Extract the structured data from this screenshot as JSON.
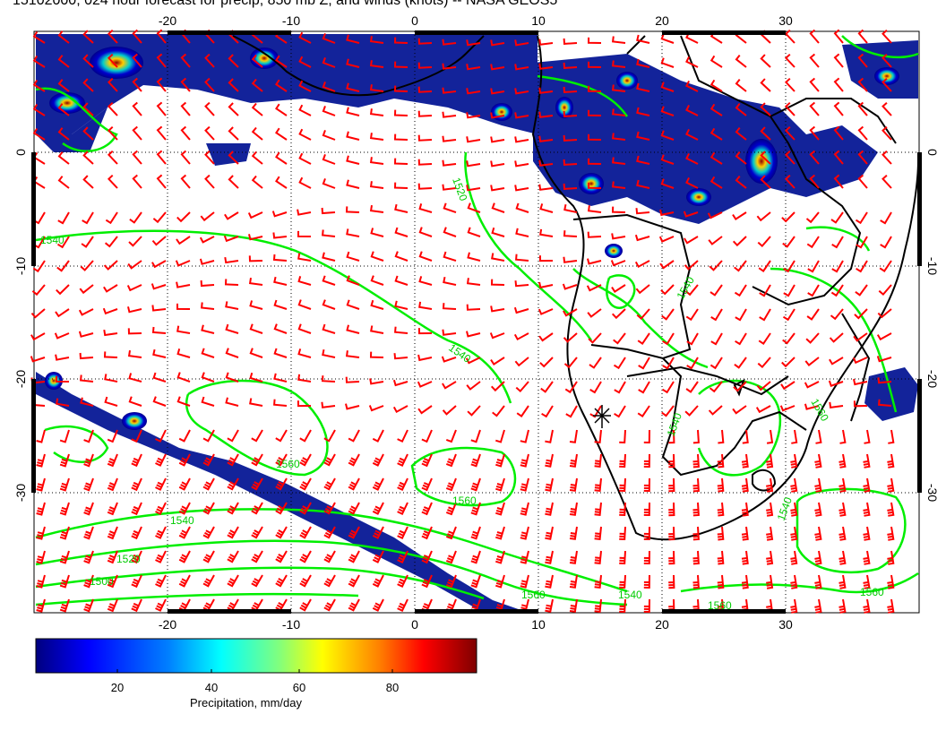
{
  "title": "15102000, 024 hour forecast for precip, 850 mb Z, and winds (knots) -- NASA GEOS5",
  "map": {
    "x_ticks": [
      "-20",
      "-10",
      "0",
      "10",
      "20",
      "30"
    ],
    "y_ticks_left": [
      "0",
      "-10",
      "-20",
      "-30"
    ],
    "y_ticks_right": [
      "0",
      "-10",
      "-20",
      "-30"
    ],
    "contour_labels": [
      "1520",
      "1540",
      "1540",
      "1540",
      "1540",
      "1560",
      "1560",
      "1560",
      "1560",
      "1500",
      "1520",
      "1540",
      "1560",
      "1540",
      "1560",
      "1540"
    ],
    "colors": {
      "wind_barbs": "#ff0000",
      "contours": "#00ee00",
      "coast": "#000000",
      "precip_low": "#00008b",
      "precip_high": "#8b0000"
    }
  },
  "colorbar": {
    "ticks": [
      "20",
      "40",
      "60",
      "80"
    ],
    "title": "Precipitation, mm/day",
    "colors": [
      "#00007f",
      "#0000ff",
      "#007fff",
      "#00ffff",
      "#7fff7f",
      "#ffff00",
      "#ff7f00",
      "#ff0000",
      "#7f0000"
    ]
  }
}
